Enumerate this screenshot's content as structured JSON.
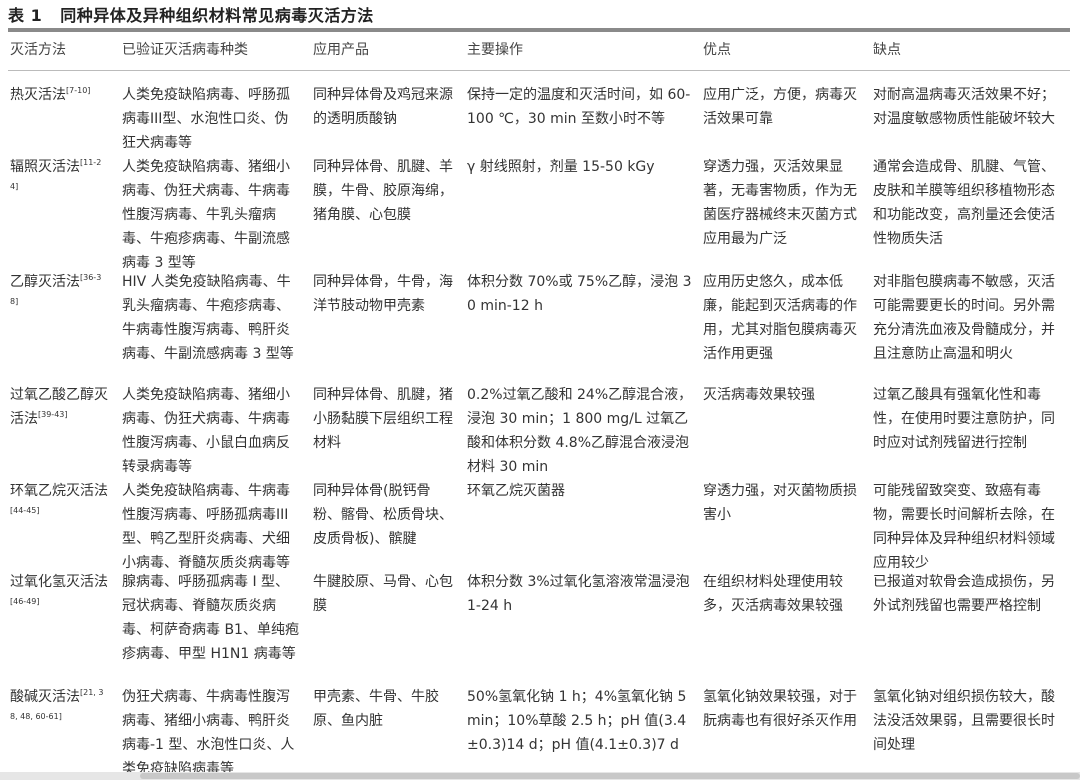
{
  "title": {
    "label": "表 1",
    "text": "同种异体及异种组织材料常见病毒灭活方法"
  },
  "headers": [
    "灭活方法",
    "已验证灭活病毒种类",
    "应用产品",
    "主要操作",
    "优点",
    "缺点"
  ],
  "rows": [
    {
      "method": "热灭活法",
      "ref": "[7-10]",
      "viruses": "人类免疫缺陷病毒、呼肠孤病毒III型、水泡性口炎、伪狂犬病毒等",
      "products": "同种异体骨及鸡冠来源的透明质酸钠",
      "operation": "保持一定的温度和灭活时间，如 60-100 ℃，30 min 至数小时不等",
      "pros": "应用广泛，方便，病毒灭活效果可靠",
      "cons": "对耐高温病毒灭活效果不好；对温度敏感物质性能破坏较大"
    },
    {
      "method": "辐照灭活法",
      "ref": "[11-24]",
      "viruses": "人类免疫缺陷病毒、猪细小病毒、伪狂犬病毒、牛病毒性腹泻病毒、牛乳头瘤病毒、牛疱疹病毒、牛副流感病毒 3 型等",
      "products": "同种异体骨、肌腱、羊膜，牛骨、胶原海绵，猪角膜、心包膜",
      "operation": "γ 射线照射，剂量 15-50 kGy",
      "pros": "穿透力强，灭活效果显著，无毒害物质，作为无菌医疗器械终末灭菌方式应用最为广泛",
      "cons": "通常会造成骨、肌腱、气管、皮肤和羊膜等组织移植物形态和功能改变，高剂量还会使活性物质失活"
    },
    {
      "method": "乙醇灭活法",
      "ref": "[36-38]",
      "viruses": "HIV 人类免疫缺陷病毒、牛乳头瘤病毒、牛疱疹病毒、牛病毒性腹泻病毒、鸭肝炎病毒、牛副流感病毒 3 型等",
      "products": "同种异体骨，牛骨，海洋节肢动物甲壳素",
      "operation": "体积分数 70%或 75%乙醇，浸泡 30 min-12 h",
      "pros": "应用历史悠久，成本低廉，能起到灭活病毒的作用，尤其对脂包膜病毒灭活作用更强",
      "cons": "对非脂包膜病毒不敏感，灭活可能需要更长的时间。另外需充分清洗血液及骨髓成分，并且注意防止高温和明火"
    },
    {
      "method": "过氧乙酸乙醇灭活法",
      "ref": "[39-43]",
      "viruses": "人类免疫缺陷病毒、猪细小病毒、伪狂犬病毒、牛病毒性腹泻病毒、小鼠白血病反转录病毒等",
      "products": "同种异体骨、肌腱，猪小肠黏膜下层组织工程材料",
      "operation": "0.2%过氧乙酸和 24%乙醇混合液，浸泡 30 min；1 800 mg/L 过氧乙酸和体积分数 4.8%乙醇混合液浸泡材料 30 min",
      "pros": "灭活病毒效果较强",
      "cons": "过氧乙酸具有强氧化性和毒性，在使用时要注意防护，同时应对试剂残留进行控制"
    },
    {
      "method": "环氧乙烷灭活法",
      "ref": "[44-45]",
      "viruses": "人类免疫缺陷病毒、牛病毒性腹泻病毒、呼肠孤病毒III型、鸭乙型肝炎病毒、犬细小病毒、脊髓灰质炎病毒等",
      "products": "同种异体骨(脱钙骨粉、髂骨、松质骨块、皮质骨板)、髌腱",
      "operation": "环氧乙烷灭菌器",
      "pros": "穿透力强，对灭菌物质损害小",
      "cons": "可能残留致突变、致癌有毒物，需要长时间解析去除，在同种异体及异种组织材料领域应用较少"
    },
    {
      "method": "过氧化氢灭活法",
      "ref": "[46-49]",
      "viruses": "腺病毒、呼肠孤病毒 I 型、冠状病毒、脊髓灰质炎病毒、柯萨奇病毒 B1、单纯疱疹病毒、甲型 H1N1 病毒等",
      "products": "牛腱胶原、马骨、心包膜",
      "operation": "体积分数 3%过氧化氢溶液常温浸泡 1-24 h",
      "pros": "在组织材料处理使用较多，灭活病毒效果较强",
      "cons": "已报道对软骨会造成损伤，另外试剂残留也需要严格控制"
    },
    {
      "method": "酸碱灭活法",
      "ref": "[21, 38, 48, 60-61]",
      "viruses": "伪狂犬病毒、牛病毒性腹泻病毒、猪细小病毒、鸭肝炎病毒-1 型、水泡性口炎、人类免疫缺陷病毒等",
      "products": "甲壳素、牛骨、牛胶原、鱼内脏",
      "operation": "50%氢氧化钠 1 h；4%氢氧化钠 5 min；10%草酸 2.5 h；pH 值(3.4±0.3)14 d；pH 值(4.1±0.3)7 d",
      "pros": "氢氧化钠效果较强，对于朊病毒也有很好杀灭作用",
      "cons": "氢氧化钠对组织损伤较大，酸法没活效果弱，且需要很长时间处理"
    }
  ]
}
